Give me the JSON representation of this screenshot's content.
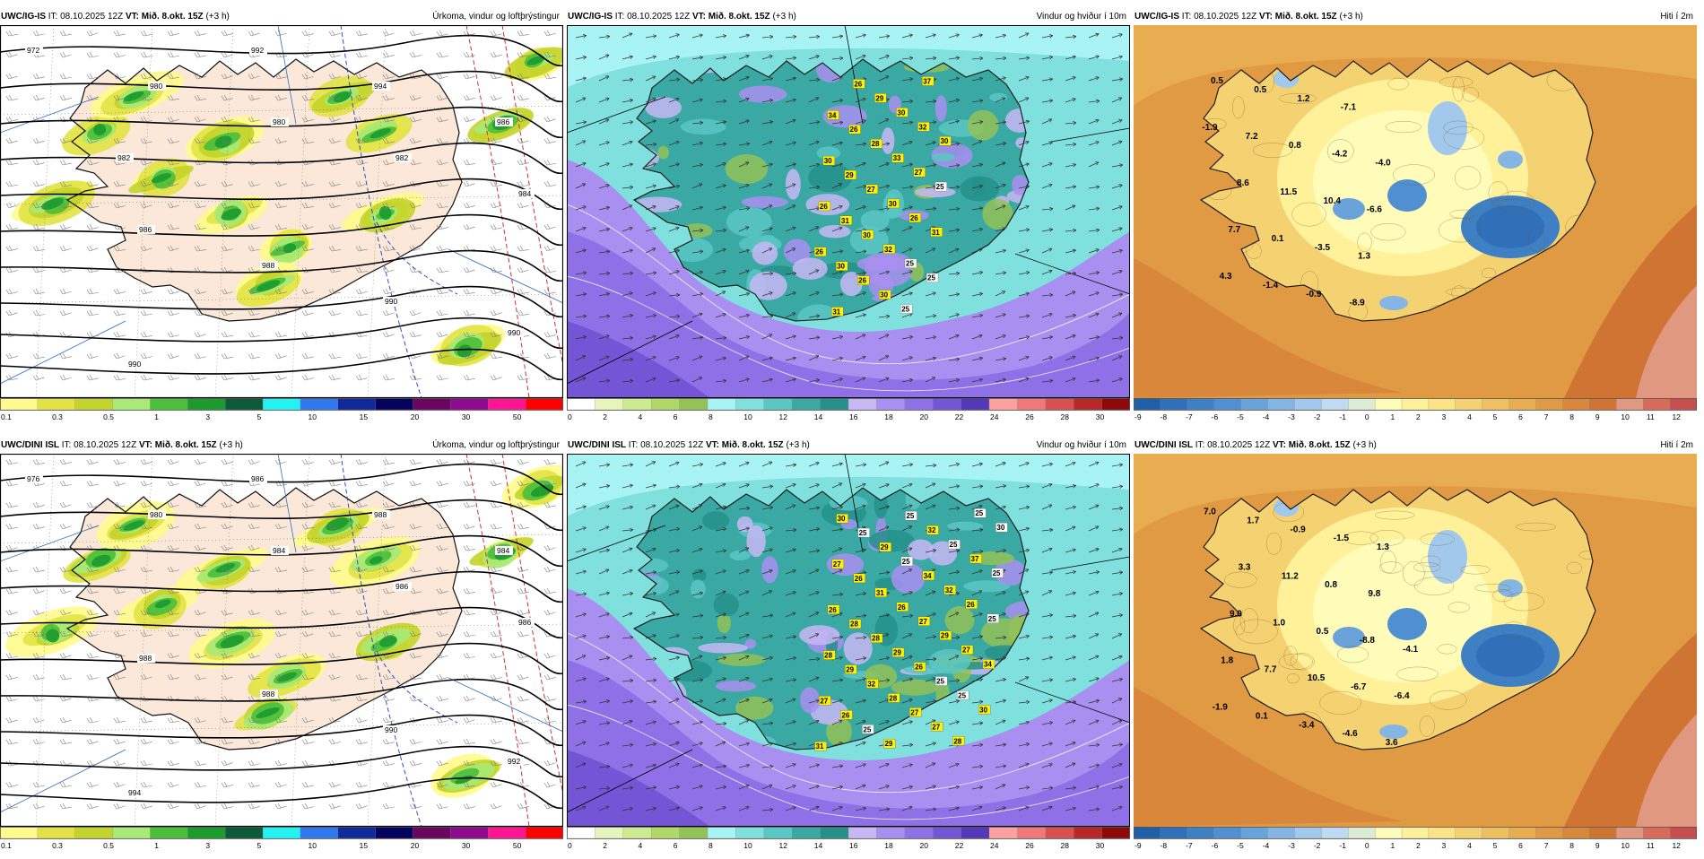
{
  "header": {
    "it_label": "IT:",
    "it_value": "08.10.2025 12Z",
    "vt_label": "VT:",
    "vt_value": "Mið. 8.okt. 15Z",
    "lead": "(+3 h)"
  },
  "panels": [
    {
      "id": "igis-precip",
      "model": "UWC/IG-IS",
      "title": "Úrkoma, vindur og loftþrýstingur",
      "field": "precip",
      "pressure_labels": [
        "972",
        "980",
        "980",
        "982",
        "984",
        "986",
        "988",
        "990",
        "990",
        "990",
        "992",
        "994",
        "986",
        "982"
      ],
      "colorbar": {
        "colors": [
          "#fffb8c",
          "#e2e246",
          "#c3d42c",
          "#a7ea78",
          "#4bbe3a",
          "#1b9a2e",
          "#0d5a3a",
          "#22f2f2",
          "#2f78f0",
          "#102a9a",
          "#04045e",
          "#6a0560",
          "#8e0a8e",
          "#ff1493",
          "#ff0000"
        ],
        "ticks": [
          "0.1",
          "0.3",
          "0.5",
          "1",
          "3",
          "5",
          "10",
          "15",
          "20",
          "30",
          "50"
        ]
      }
    },
    {
      "id": "igis-wind",
      "model": "UWC/IG-IS",
      "title": "Vindur og hviður í 10m",
      "field": "wind",
      "gust_labels": [
        "26",
        "26",
        "30",
        "34",
        "31",
        "30",
        "31",
        "29",
        "26",
        "26",
        "26",
        "30",
        "27",
        "28",
        "29",
        "30",
        "32",
        "30",
        "33",
        "30",
        "25",
        "25",
        "26",
        "27",
        "32",
        "37",
        "25",
        "31",
        "25",
        "30"
      ],
      "colorbar": {
        "colors": [
          "#ffffff",
          "#e6f5bd",
          "#ccea90",
          "#b0d868",
          "#93c257",
          "#a8f3f3",
          "#7fe0de",
          "#5bc7c4",
          "#3aa9a3",
          "#25908a",
          "#c8b7f5",
          "#a98ff0",
          "#8f70e6",
          "#7355d6",
          "#5338b8",
          "#ffa0a0",
          "#f07878",
          "#d85050",
          "#b82828",
          "#8e0a0a"
        ],
        "ticks": [
          "0",
          "2",
          "4",
          "6",
          "8",
          "10",
          "12",
          "14",
          "16",
          "18",
          "20",
          "22",
          "24",
          "26",
          "28",
          "30"
        ]
      }
    },
    {
      "id": "igis-temp",
      "model": "UWC/IG-IS",
      "title": "Hiti í 2m",
      "field": "temp",
      "temp_labels": [
        "-1.9",
        "0.5",
        "4.3",
        "7.7",
        "8.6",
        "7.2",
        "0.5",
        "-1.4",
        "0.1",
        "11.5",
        "0.8",
        "1.2",
        "-0.9",
        "-3.5",
        "10.4",
        "-4.2",
        "-7.1",
        "-8.9",
        "1.3",
        "-6.6",
        "-4.0"
      ],
      "colorbar": {
        "colors": [
          "#1f5fa8",
          "#2f70b8",
          "#3f80c5",
          "#5090d0",
          "#6aa2da",
          "#85b6e3",
          "#a2c9ec",
          "#bfdbf2",
          "#dcebd4",
          "#fffbb8",
          "#fff09a",
          "#fbe386",
          "#f5d271",
          "#efc05f",
          "#e8ad50",
          "#e09a44",
          "#d8873b",
          "#d07434",
          "#e09880",
          "#d86a5a",
          "#c84d4d"
        ],
        "ticks": [
          "-9",
          "-8",
          "-7",
          "-6",
          "-5",
          "-4",
          "-3",
          "-2",
          "-1",
          "0",
          "1",
          "2",
          "3",
          "4",
          "5",
          "6",
          "7",
          "8",
          "9",
          "10",
          "11",
          "12"
        ]
      }
    },
    {
      "id": "dini-precip",
      "model": "UWC/DINI ISL",
      "title": "Úrkoma, vindur og loftþrýstingur",
      "field": "precip",
      "pressure_labels": [
        "976",
        "980",
        "984",
        "986",
        "986",
        "988",
        "988",
        "990",
        "992",
        "994",
        "986",
        "988",
        "984"
      ],
      "colorbar": {
        "colors": [
          "#fffb8c",
          "#e2e246",
          "#c3d42c",
          "#a7ea78",
          "#4bbe3a",
          "#1b9a2e",
          "#0d5a3a",
          "#22f2f2",
          "#2f78f0",
          "#102a9a",
          "#04045e",
          "#6a0560",
          "#8e0a8e",
          "#ff1493",
          "#ff0000"
        ],
        "ticks": [
          "0.1",
          "0.3",
          "0.5",
          "1",
          "3",
          "5",
          "10",
          "15",
          "20",
          "30",
          "50"
        ]
      }
    },
    {
      "id": "dini-wind",
      "model": "UWC/DINI ISL",
      "title": "Vindur og hviður í 10m",
      "field": "wind",
      "gust_labels": [
        "31",
        "27",
        "28",
        "26",
        "27",
        "30",
        "26",
        "29",
        "28",
        "26",
        "25",
        "25",
        "32",
        "28",
        "31",
        "29",
        "29",
        "28",
        "29",
        "26",
        "25",
        "25",
        "27",
        "26",
        "27",
        "34",
        "32",
        "27",
        "25",
        "29",
        "32",
        "25",
        "28",
        "25",
        "27",
        "26",
        "37",
        "25",
        "30",
        "34",
        "25",
        "25",
        "30"
      ],
      "colorbar": {
        "colors": [
          "#ffffff",
          "#e6f5bd",
          "#ccea90",
          "#b0d868",
          "#93c257",
          "#a8f3f3",
          "#7fe0de",
          "#5bc7c4",
          "#3aa9a3",
          "#25908a",
          "#c8b7f5",
          "#a98ff0",
          "#8f70e6",
          "#7355d6",
          "#5338b8",
          "#ffa0a0",
          "#f07878",
          "#d85050",
          "#b82828",
          "#8e0a0a"
        ],
        "ticks": [
          "0",
          "2",
          "4",
          "6",
          "8",
          "10",
          "12",
          "14",
          "16",
          "18",
          "20",
          "22",
          "24",
          "26",
          "28",
          "30"
        ]
      }
    },
    {
      "id": "dini-temp",
      "model": "UWC/DINI ISL",
      "title": "Hiti í 2m",
      "field": "temp",
      "temp_labels": [
        "7.0",
        "-1.9",
        "1.8",
        "9.0",
        "3.3",
        "1.7",
        "0.1",
        "7.7",
        "1.0",
        "11.2",
        "-0.9",
        "-3.4",
        "10.5",
        "0.5",
        "0.8",
        "-1.5",
        "-4.6",
        "-6.7",
        "-8.8",
        "9.8",
        "1.3",
        "3.6",
        "-6.4",
        "-4.1"
      ],
      "colorbar": {
        "colors": [
          "#1f5fa8",
          "#2f70b8",
          "#3f80c5",
          "#5090d0",
          "#6aa2da",
          "#85b6e3",
          "#a2c9ec",
          "#bfdbf2",
          "#dcebd4",
          "#fffbb8",
          "#fff09a",
          "#fbe386",
          "#f5d271",
          "#efc05f",
          "#e8ad50",
          "#e09a44",
          "#d8873b",
          "#d07434",
          "#e09880",
          "#d86a5a",
          "#c84d4d"
        ],
        "ticks": [
          "-9",
          "-8",
          "-7",
          "-6",
          "-5",
          "-4",
          "-3",
          "-2",
          "-1",
          "0",
          "1",
          "2",
          "3",
          "4",
          "5",
          "6",
          "7",
          "8",
          "9",
          "10",
          "11",
          "12"
        ]
      }
    }
  ]
}
